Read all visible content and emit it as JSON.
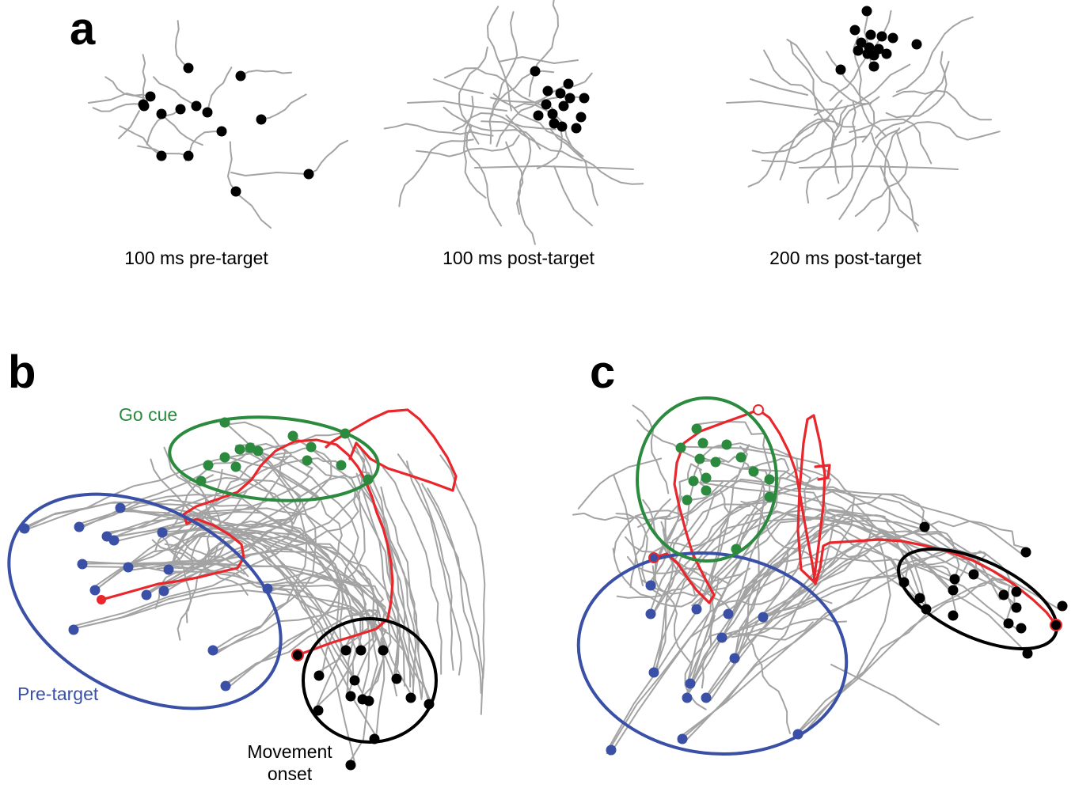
{
  "panels": {
    "a": {
      "letter": "a",
      "captions": [
        "100 ms pre-target",
        "100 ms post-target",
        "200 ms post-target"
      ]
    },
    "b": {
      "letter": "b",
      "go_cue_label": "Go cue",
      "pre_target_label": "Pre-target",
      "movement_onset_label_line1": "Movement",
      "movement_onset_label_line2": "onset"
    },
    "c": {
      "letter": "c"
    }
  },
  "colors": {
    "trajectory": "#a3a3a3",
    "highlight_trajectory": "#e8262b",
    "pre_target": "#3a50a6",
    "go_cue": "#2b8a3e",
    "movement_onset": "#000000"
  }
}
